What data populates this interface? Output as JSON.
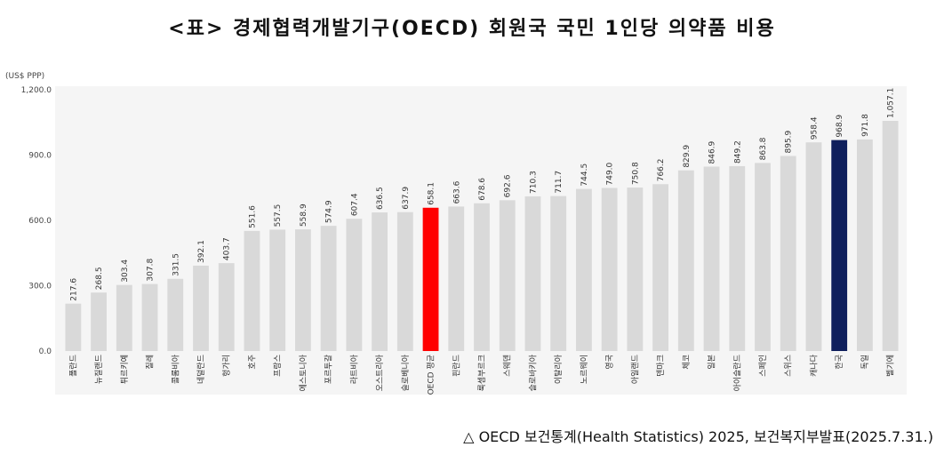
{
  "title": "<표> 경제협력개발기구(OECD) 회원국 국민 1인당 의약품 비용",
  "source": "△ OECD 보건통계(Health Statistics) 2025, 보건복지부발표(2025.7.31.)",
  "colors": {
    "bar": "#d9d9d9",
    "oecd_avg": "#ff0000",
    "korea": "#0f1f5c",
    "background": "#f5f5f5"
  },
  "chart_data": {
    "type": "bar",
    "ylabel": "(US$ PPP)",
    "ylim": [
      0,
      1200
    ],
    "yticks": [
      0,
      300,
      600,
      900,
      1200
    ],
    "ytick_labels": [
      "0.0",
      "300.0",
      "600.0",
      "900.0",
      "1,200.0"
    ],
    "grid": false,
    "categories": [
      "폴란드",
      "뉴질랜드",
      "튀르키예",
      "칠레",
      "콜롬비아",
      "네덜란드",
      "헝가리",
      "호주",
      "프랑스",
      "에스토니아",
      "포르투갈",
      "라트비아",
      "오스트리아",
      "슬로베니아",
      "OECD 평균",
      "핀란드",
      "룩셈부르크",
      "스웨덴",
      "슬로바키아",
      "이탈리아",
      "노르웨이",
      "영국",
      "아일랜드",
      "덴마크",
      "체코",
      "일본",
      "아이슬란드",
      "스페인",
      "스위스",
      "캐나다",
      "한국",
      "독일",
      "벨기에"
    ],
    "values": [
      217.6,
      268.5,
      303.4,
      307.8,
      331.5,
      392.1,
      403.7,
      551.6,
      557.5,
      558.9,
      574.9,
      607.4,
      636.5,
      637.9,
      658.1,
      663.6,
      678.6,
      692.6,
      710.3,
      711.7,
      744.5,
      749.0,
      750.8,
      766.2,
      829.9,
      846.9,
      849.2,
      863.8,
      895.9,
      958.4,
      968.9,
      971.8,
      1057.1
    ],
    "value_labels": [
      "217.6",
      "268.5",
      "303.4",
      "307.8",
      "331.5",
      "392.1",
      "403.7",
      "551.6",
      "557.5",
      "558.9",
      "574.9",
      "607.4",
      "636.5",
      "637.9",
      "658.1",
      "663.6",
      "678.6",
      "692.6",
      "710.3",
      "711.7",
      "744.5",
      "749.0",
      "750.8",
      "766.2",
      "829.9",
      "846.9",
      "849.2",
      "863.8",
      "895.9",
      "958.4",
      "968.9",
      "971.8",
      "1,057.1"
    ],
    "highlight": {
      "OECD 평균": "oecd_avg",
      "한국": "korea"
    }
  }
}
